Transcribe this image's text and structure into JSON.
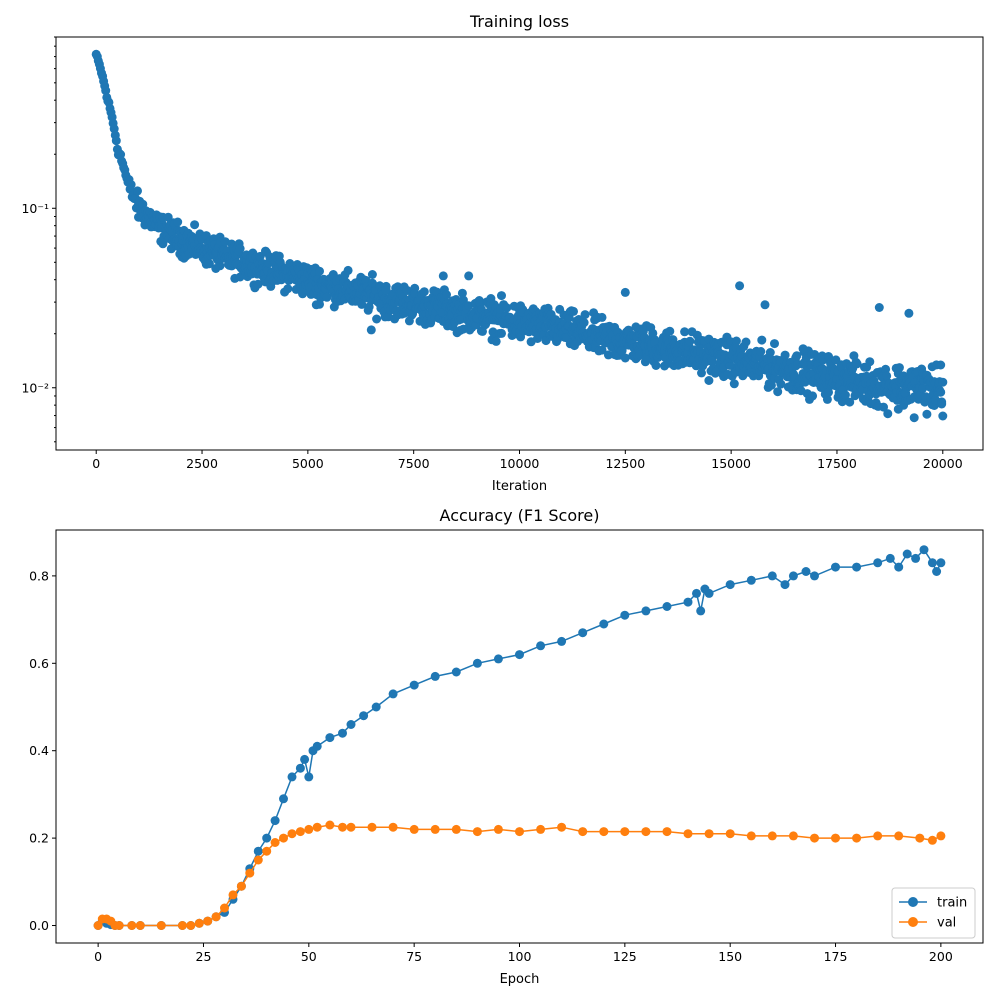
{
  "chart_data": [
    {
      "type": "scatter",
      "title": "Training loss",
      "xlabel": "Iteration",
      "ylabel": "",
      "yscale": "log",
      "xlim": [
        -950,
        20950
      ],
      "ylim": [
        0.0045,
        0.9
      ],
      "x_ticks": [
        0,
        2500,
        5000,
        7500,
        10000,
        12500,
        15000,
        17500,
        20000
      ],
      "x_tick_labels": [
        "0",
        "2500",
        "5000",
        "7500",
        "10000",
        "12500",
        "15000",
        "17500",
        "20000"
      ],
      "y_ticks": [
        0.01,
        0.1
      ],
      "y_tick_labels": [
        "10⁻²",
        "10⁻¹"
      ],
      "series": [
        {
          "name": "loss",
          "color": "#1f77b4",
          "description_points": {
            "iteration": [
              0,
              250,
              500,
              750,
              1000,
              1500,
              2000,
              2500,
              3000,
              4000,
              5000,
              6000,
              7000,
              8000,
              9000,
              10000,
              11000,
              12000,
              13000,
              14000,
              15000,
              16000,
              17000,
              18000,
              19000,
              20000
            ],
            "center": [
              0.72,
              0.42,
              0.22,
              0.14,
              0.105,
              0.085,
              0.073,
              0.064,
              0.057,
              0.048,
              0.041,
              0.036,
              0.032,
              0.029,
              0.026,
              0.024,
              0.021,
              0.019,
              0.017,
              0.0155,
              0.0142,
              0.0128,
              0.0118,
              0.0108,
              0.0098,
              0.009
            ],
            "spread_low": [
              0.7,
              0.4,
              0.2,
              0.115,
              0.078,
              0.06,
              0.05,
              0.045,
              0.04,
              0.034,
              0.029,
              0.025,
              0.022,
              0.02,
              0.018,
              0.016,
              0.015,
              0.013,
              0.012,
              0.0108,
              0.0098,
              0.0088,
              0.008,
              0.0072,
              0.0065,
              0.006
            ],
            "spread_high": [
              0.74,
              0.44,
              0.24,
              0.16,
              0.13,
              0.1,
              0.09,
              0.08,
              0.072,
              0.062,
              0.054,
              0.048,
              0.043,
              0.039,
              0.036,
              0.033,
              0.03,
              0.027,
              0.025,
              0.023,
              0.021,
              0.019,
              0.0175,
              0.016,
              0.0155,
              0.0165
            ]
          },
          "outliers": [
            [
              5200,
              0.029
            ],
            [
              6500,
              0.021
            ],
            [
              8200,
              0.042
            ],
            [
              8800,
              0.042
            ],
            [
              12500,
              0.034
            ],
            [
              15200,
              0.037
            ],
            [
              15800,
              0.029
            ],
            [
              18500,
              0.028
            ],
            [
              19200,
              0.026
            ],
            [
              16700,
              0.0165
            ]
          ]
        }
      ]
    },
    {
      "type": "line",
      "title": "Accuracy (F1 Score)",
      "xlabel": "Epoch",
      "ylabel": "",
      "xlim": [
        -10,
        210
      ],
      "ylim": [
        -0.04,
        0.905
      ],
      "x_ticks": [
        0,
        25,
        50,
        75,
        100,
        125,
        150,
        175,
        200
      ],
      "x_tick_labels": [
        "0",
        "25",
        "50",
        "75",
        "100",
        "125",
        "150",
        "175",
        "200"
      ],
      "y_ticks": [
        0.0,
        0.2,
        0.4,
        0.6,
        0.8
      ],
      "y_tick_labels": [
        "0.0",
        "0.2",
        "0.4",
        "0.6",
        "0.8"
      ],
      "legend": {
        "position": "lower-right",
        "entries": [
          "train",
          "val"
        ]
      },
      "series": [
        {
          "name": "train",
          "color": "#1f77b4",
          "x": [
            0,
            1,
            2,
            3,
            4,
            5,
            8,
            10,
            15,
            20,
            22,
            24,
            26,
            28,
            30,
            32,
            34,
            36,
            38,
            40,
            42,
            44,
            46,
            48,
            49,
            50,
            51,
            52,
            55,
            58,
            60,
            63,
            66,
            70,
            75,
            80,
            85,
            90,
            95,
            100,
            105,
            110,
            115,
            120,
            125,
            130,
            135,
            140,
            142,
            143,
            144,
            145,
            150,
            155,
            160,
            163,
            165,
            168,
            170,
            175,
            180,
            185,
            188,
            190,
            192,
            194,
            196,
            198,
            199,
            200
          ],
          "y": [
            0.0,
            0.01,
            0.005,
            0.002,
            0.0,
            0.0,
            0.0,
            0.0,
            0.0,
            0.0,
            0.0,
            0.005,
            0.01,
            0.02,
            0.03,
            0.06,
            0.09,
            0.13,
            0.17,
            0.2,
            0.24,
            0.29,
            0.34,
            0.36,
            0.38,
            0.34,
            0.4,
            0.41,
            0.43,
            0.44,
            0.46,
            0.48,
            0.5,
            0.53,
            0.55,
            0.57,
            0.58,
            0.6,
            0.61,
            0.62,
            0.64,
            0.65,
            0.67,
            0.69,
            0.71,
            0.72,
            0.73,
            0.74,
            0.76,
            0.72,
            0.77,
            0.76,
            0.78,
            0.79,
            0.8,
            0.78,
            0.8,
            0.81,
            0.8,
            0.82,
            0.82,
            0.83,
            0.84,
            0.82,
            0.85,
            0.84,
            0.86,
            0.83,
            0.81,
            0.83
          ]
        },
        {
          "name": "val",
          "color": "#ff7f0e",
          "x": [
            0,
            1,
            2,
            3,
            4,
            5,
            8,
            10,
            15,
            20,
            22,
            24,
            26,
            28,
            30,
            32,
            34,
            36,
            38,
            40,
            42,
            44,
            46,
            48,
            50,
            52,
            55,
            58,
            60,
            65,
            70,
            75,
            80,
            85,
            90,
            95,
            100,
            105,
            110,
            115,
            120,
            125,
            130,
            135,
            140,
            145,
            150,
            155,
            160,
            165,
            170,
            175,
            180,
            185,
            190,
            195,
            198,
            200
          ],
          "y": [
            0.0,
            0.015,
            0.015,
            0.01,
            0.0,
            0.0,
            0.0,
            0.0,
            0.0,
            0.0,
            0.0,
            0.005,
            0.01,
            0.02,
            0.04,
            0.07,
            0.09,
            0.12,
            0.15,
            0.17,
            0.19,
            0.2,
            0.21,
            0.215,
            0.22,
            0.225,
            0.23,
            0.225,
            0.225,
            0.225,
            0.225,
            0.22,
            0.22,
            0.22,
            0.215,
            0.22,
            0.215,
            0.22,
            0.225,
            0.215,
            0.215,
            0.215,
            0.215,
            0.215,
            0.21,
            0.21,
            0.21,
            0.205,
            0.205,
            0.205,
            0.2,
            0.2,
            0.2,
            0.205,
            0.205,
            0.2,
            0.195,
            0.205
          ]
        }
      ]
    }
  ]
}
